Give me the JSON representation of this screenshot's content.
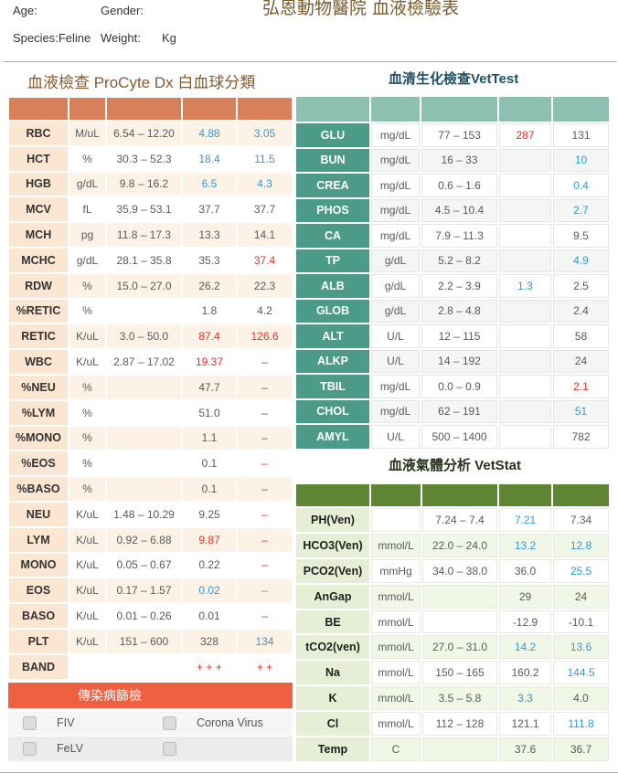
{
  "header": {
    "age_label": "Age:",
    "gender_label": "Gender:",
    "title": "弘恩動物醫院 血液檢驗表",
    "species_label": "Species:Feline",
    "weight_label": "Weight:",
    "weight_unit": "Kg"
  },
  "status_colors": {
    "low": "#3399d6",
    "high": "#e0332a",
    "normal": "#5a5a5a"
  },
  "colors": {
    "cbc_header": "#d9805a",
    "chem_header": "#8dc0b1",
    "chem_label": "#4c9b88",
    "gas_header": "#5e8634",
    "infectious_header": "#ee6040"
  },
  "cbc": {
    "title": "血液檢查 ProCyte Dx 白血球分類",
    "rows": [
      {
        "test": "RBC",
        "unit": "M/uL",
        "range": "6.54 – 12.20",
        "result1": "4.88",
        "flag1": "low",
        "result2": "3.05",
        "flag2": "low"
      },
      {
        "test": "HCT",
        "unit": "%",
        "range": "30.3 – 52.3",
        "result1": "18.4",
        "flag1": "low",
        "result2": "11.5",
        "flag2": "low"
      },
      {
        "test": "HGB",
        "unit": "g/dL",
        "range": "9.8 – 16.2",
        "result1": "6.5",
        "flag1": "low",
        "result2": "4.3",
        "flag2": "low"
      },
      {
        "test": "MCV",
        "unit": "fL",
        "range": "35.9 – 53.1",
        "result1": "37.7",
        "result2": "37.7"
      },
      {
        "test": "MCH",
        "unit": "pg",
        "range": "11.8 – 17.3",
        "result1": "13.3",
        "result2": "14.1"
      },
      {
        "test": "MCHC",
        "unit": "g/dL",
        "range": "28.1 – 35.8",
        "result1": "35.3",
        "result2": "37.4",
        "flag2": "high"
      },
      {
        "test": "RDW",
        "unit": "%",
        "range": "15.0 – 27.0",
        "result1": "26.2",
        "result2": "22.3"
      },
      {
        "test": "%RETIC",
        "unit": "%",
        "range": "",
        "result1": "1.8",
        "result2": "4.2"
      },
      {
        "test": "RETIC",
        "unit": "K/uL",
        "range": "3.0 – 50.0",
        "result1": "87.4",
        "flag1": "high",
        "result2": "126.6",
        "flag2": "high"
      },
      {
        "test": "WBC",
        "unit": "K/uL",
        "range": "2.87 – 17.02",
        "result1": "19.37",
        "flag1": "high",
        "result2": "–",
        "flag2": "high"
      },
      {
        "test": "%NEU",
        "unit": "%",
        "range": "",
        "result1": "47.7",
        "result2": "–"
      },
      {
        "test": "%LYM",
        "unit": "%",
        "range": "",
        "result1": "51.0",
        "result2": "–"
      },
      {
        "test": "%MONO",
        "unit": "%",
        "range": "",
        "result1": "1.1",
        "result2": "–"
      },
      {
        "test": "%EOS",
        "unit": "%",
        "range": "",
        "result1": "0.1",
        "result2": "–",
        "flag2": "high"
      },
      {
        "test": "%BASO",
        "unit": "%",
        "range": "",
        "result1": "0.1",
        "result2": "–"
      },
      {
        "test": "NEU",
        "unit": "K/uL",
        "range": "1.48 – 10.29",
        "result1": "9.25",
        "result2": "–",
        "flag2": "high"
      },
      {
        "test": "LYM",
        "unit": "K/uL",
        "range": "0.92 – 6.88",
        "result1": "9.87",
        "flag1": "high",
        "result2": "–",
        "flag2": "high"
      },
      {
        "test": "MONO",
        "unit": "K/uL",
        "range": "0.05 – 0.67",
        "result1": "0.22",
        "result2": "–",
        "flag2": "high"
      },
      {
        "test": "EOS",
        "unit": "K/uL",
        "range": "0.17 – 1.57",
        "result1": "0.02",
        "flag1": "low",
        "result2": "–",
        "flag2": "low"
      },
      {
        "test": "BASO",
        "unit": "K/uL",
        "range": "0.01 – 0.26",
        "result1": "0.01",
        "result2": "–",
        "flag2": "high"
      },
      {
        "test": "PLT",
        "unit": "K/uL",
        "range": "151 – 600",
        "result1": "328",
        "result2": "134",
        "flag2": "low"
      },
      {
        "test": "BAND",
        "unit": "",
        "range": "",
        "result1": "+ + +",
        "flag1": "high",
        "result2": "+ +",
        "flag2": "high"
      }
    ]
  },
  "chem": {
    "title": "血清生化檢查VetTest",
    "rows": [
      {
        "test": "GLU",
        "unit": "mg/dL",
        "range": "77 – 153",
        "result1": "287",
        "flag1": "high",
        "result2": "131"
      },
      {
        "test": "BUN",
        "unit": "mg/dL",
        "range": "16 – 33",
        "result1": "",
        "result2": "10",
        "flag2": "low"
      },
      {
        "test": "CREA",
        "unit": "mg/dL",
        "range": "0.6 – 1.6",
        "result1": "",
        "result2": "0.4",
        "flag2": "low"
      },
      {
        "test": "PHOS",
        "unit": "mg/dL",
        "range": "4.5 – 10.4",
        "result1": "",
        "result2": "2.7",
        "flag2": "low"
      },
      {
        "test": "CA",
        "unit": "mg/dL",
        "range": "7.9 – 11.3",
        "result1": "",
        "result2": "9.5"
      },
      {
        "test": "TP",
        "unit": "g/dL",
        "range": "5.2 – 8.2",
        "result1": "",
        "result2": "4.9",
        "flag2": "low"
      },
      {
        "test": "ALB",
        "unit": "g/dL",
        "range": "2.2 – 3.9",
        "result1": "1.3",
        "flag1": "low",
        "result2": "2.5"
      },
      {
        "test": "GLOB",
        "unit": "g/dL",
        "range": "2.8 – 4.8",
        "result1": "",
        "result2": "2.4"
      },
      {
        "test": "ALT",
        "unit": "U/L",
        "range": "12 – 115",
        "result1": "",
        "result2": "58"
      },
      {
        "test": "ALKP",
        "unit": "U/L",
        "range": "14 – 192",
        "result1": "",
        "result2": "24"
      },
      {
        "test": "TBIL",
        "unit": "mg/dL",
        "range": "0.0 – 0.9",
        "result1": "",
        "result2": "2.1",
        "flag2": "high"
      },
      {
        "test": "CHOL",
        "unit": "mg/dL",
        "range": "62 – 191",
        "result1": "",
        "result2": "51",
        "flag2": "low"
      },
      {
        "test": "AMYL",
        "unit": "U/L",
        "range": "500 – 1400",
        "result1": "",
        "result2": "782"
      }
    ]
  },
  "gas": {
    "title": "血液氣體分析 VetStat",
    "rows": [
      {
        "test": "PH(Ven)",
        "unit": "",
        "range": "7.24 – 7.4",
        "result1": "7.21",
        "flag1": "low",
        "result2": "7.34"
      },
      {
        "test": "HCO3(Ven)",
        "unit": "mmol/L",
        "range": "22.0 – 24.0",
        "result1": "13.2",
        "flag1": "low",
        "result2": "12.8",
        "flag2": "low"
      },
      {
        "test": "PCO2(Ven)",
        "unit": "mmHg",
        "range": "34.0 – 38.0",
        "result1": "36.0",
        "result2": "25.5",
        "flag2": "low"
      },
      {
        "test": "AnGap",
        "unit": "mmol/L",
        "range": "",
        "result1": "29",
        "result2": "24"
      },
      {
        "test": "BE",
        "unit": "mmol/L",
        "range": "",
        "result1": "-12.9",
        "result2": "-10.1"
      },
      {
        "test": "tCO2(ven)",
        "unit": "mmol/L",
        "range": "27.0 – 31.0",
        "result1": "14.2",
        "flag1": "low",
        "result2": "13.6",
        "flag2": "low"
      },
      {
        "test": "Na",
        "unit": "mmol/L",
        "range": "150 – 165",
        "result1": "160.2",
        "result2": "144.5",
        "flag2": "low"
      },
      {
        "test": "K",
        "unit": "mmol/L",
        "range": "3.5 – 5.8",
        "result1": "3.3",
        "flag1": "low",
        "result2": "4.0"
      },
      {
        "test": "Cl",
        "unit": "mmol/L",
        "range": "112 – 128",
        "result1": "121.1",
        "result2": "111.8",
        "flag2": "low"
      },
      {
        "test": "Temp",
        "unit": "C",
        "range": "",
        "result1": "37.6",
        "result2": "36.7"
      }
    ]
  },
  "infectious": {
    "title": "傳染病篩檢",
    "items": [
      {
        "label": "FIV",
        "checked": false
      },
      {
        "label": "Corona Virus",
        "checked": false
      },
      {
        "label": "FeLV",
        "checked": false
      },
      {
        "checked": false
      }
    ]
  }
}
